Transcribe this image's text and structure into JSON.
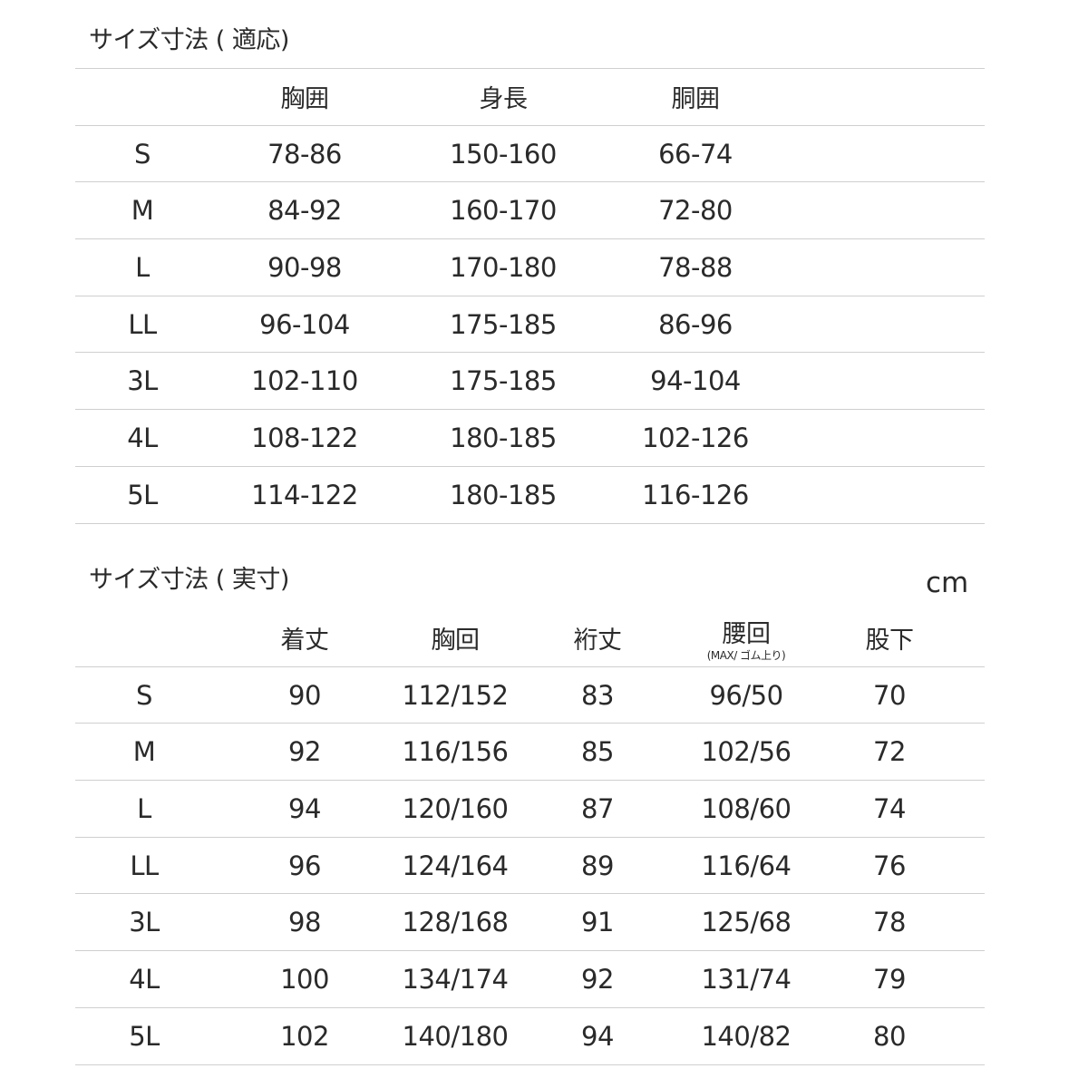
{
  "fit_table": {
    "title": "サイズ寸法 ( 適応)",
    "headers": [
      "",
      "胸囲",
      "身長",
      "胴囲"
    ],
    "rows": [
      [
        "S",
        "78-86",
        "150-160",
        "66-74"
      ],
      [
        "M",
        "84-92",
        "160-170",
        "72-80"
      ],
      [
        "L",
        "90-98",
        "170-180",
        "78-88"
      ],
      [
        "LL",
        "96-104",
        "175-185",
        "86-96"
      ],
      [
        "3L",
        "102-110",
        "175-185",
        "94-104"
      ],
      [
        "4L",
        "108-122",
        "180-185",
        "102-126"
      ],
      [
        "5L",
        "114-122",
        "180-185",
        "116-126"
      ]
    ]
  },
  "actual_table": {
    "title": "サイズ寸法 ( 実寸)",
    "unit": "cm",
    "headers": [
      "",
      "着丈",
      "胸回",
      "裄丈",
      "腰回",
      "股下"
    ],
    "header_notes": [
      "",
      "",
      "",
      "",
      "(MAX/ ゴム上り)",
      ""
    ],
    "rows": [
      [
        "S",
        "90",
        "112/152",
        "83",
        "96/50",
        "70"
      ],
      [
        "M",
        "92",
        "116/156",
        "85",
        "102/56",
        "72"
      ],
      [
        "L",
        "94",
        "120/160",
        "87",
        "108/60",
        "74"
      ],
      [
        "LL",
        "96",
        "124/164",
        "89",
        "116/64",
        "76"
      ],
      [
        "3L",
        "98",
        "128/168",
        "91",
        "125/68",
        "78"
      ],
      [
        "4L",
        "100",
        "134/174",
        "92",
        "131/74",
        "79"
      ],
      [
        "5L",
        "102",
        "140/180",
        "94",
        "140/82",
        "80"
      ]
    ]
  }
}
